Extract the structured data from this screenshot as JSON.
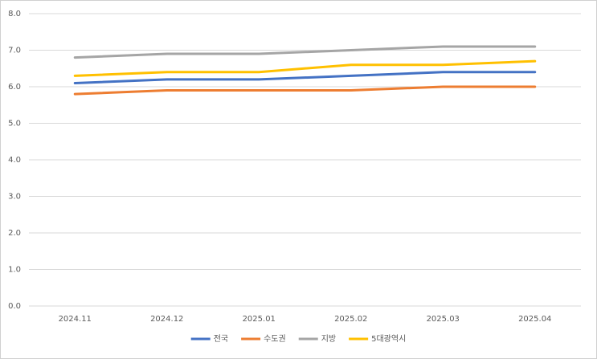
{
  "chart_data": {
    "type": "line",
    "categories": [
      "2024.11",
      "2024.12",
      "2025.01",
      "2025.02",
      "2025.03",
      "2025.04"
    ],
    "series": [
      {
        "name": "전국",
        "color": "#4472c4",
        "values": [
          6.1,
          6.2,
          6.2,
          6.3,
          6.4,
          6.4
        ]
      },
      {
        "name": "수도권",
        "color": "#ed7d31",
        "values": [
          5.8,
          5.9,
          5.9,
          5.9,
          6.0,
          6.0
        ]
      },
      {
        "name": "지방",
        "color": "#a5a5a5",
        "values": [
          6.8,
          6.9,
          6.9,
          7.0,
          7.1,
          7.1
        ]
      },
      {
        "name": "5대광역시",
        "color": "#ffc000",
        "values": [
          6.3,
          6.4,
          6.4,
          6.6,
          6.6,
          6.7
        ]
      }
    ],
    "ylim": [
      0,
      8
    ],
    "yticks": [
      {
        "value": 0,
        "label": "0.0"
      },
      {
        "value": 1,
        "label": "1.0"
      },
      {
        "value": 2,
        "label": "2.0"
      },
      {
        "value": 3,
        "label": "3.0"
      },
      {
        "value": 4,
        "label": "4.0"
      },
      {
        "value": 5,
        "label": "5.0"
      },
      {
        "value": 6,
        "label": "6.0"
      },
      {
        "value": 7,
        "label": "7.0"
      },
      {
        "value": 8,
        "label": "8.0"
      }
    ],
    "grid": true,
    "legend": "bottom"
  }
}
